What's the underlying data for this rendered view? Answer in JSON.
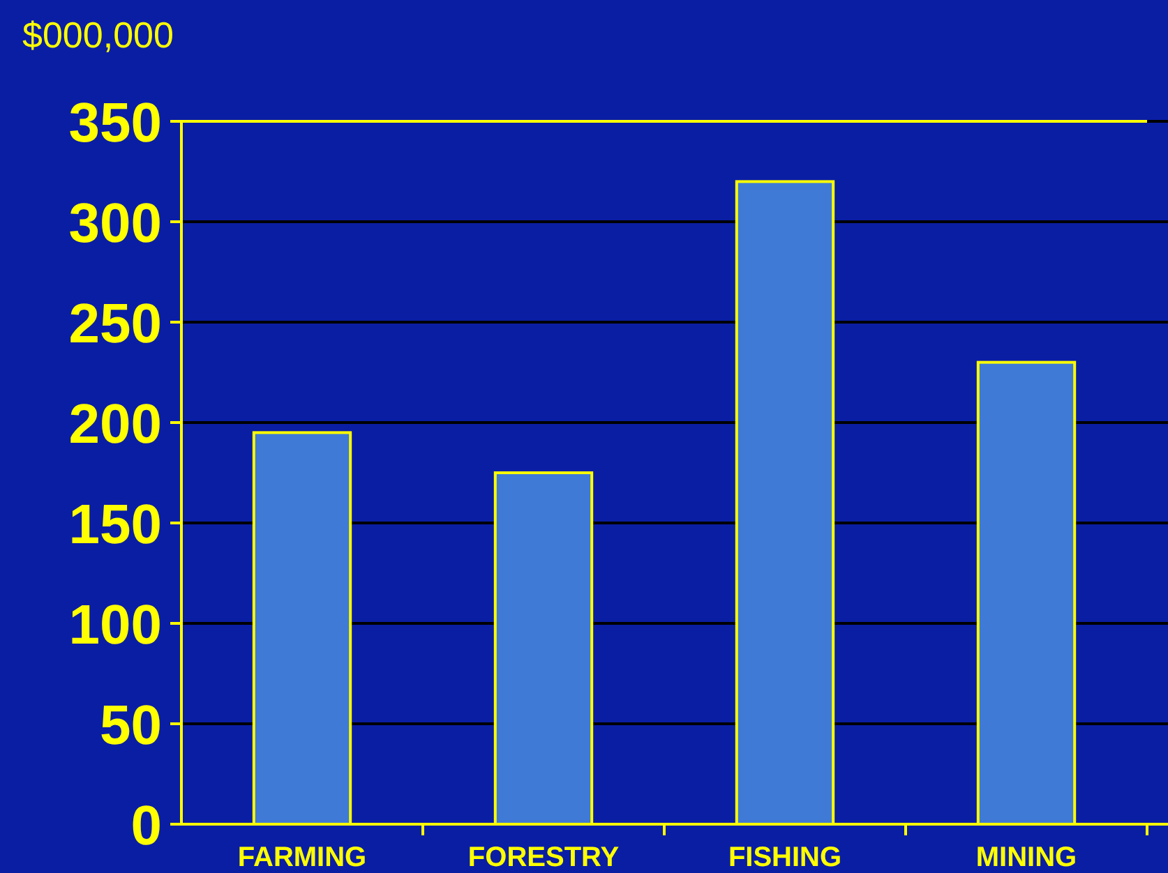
{
  "chart_data": {
    "type": "bar",
    "ylabel": "$000,000",
    "categories": [
      "FARMING",
      "FORESTRY",
      "FISHING",
      "MINING"
    ],
    "values": [
      195,
      175,
      320,
      230
    ],
    "color": "#3f7bd6",
    "ylim": [
      0,
      350
    ],
    "yticks": [
      0,
      50,
      100,
      150,
      200,
      250,
      300,
      350
    ],
    "grid": "y"
  }
}
